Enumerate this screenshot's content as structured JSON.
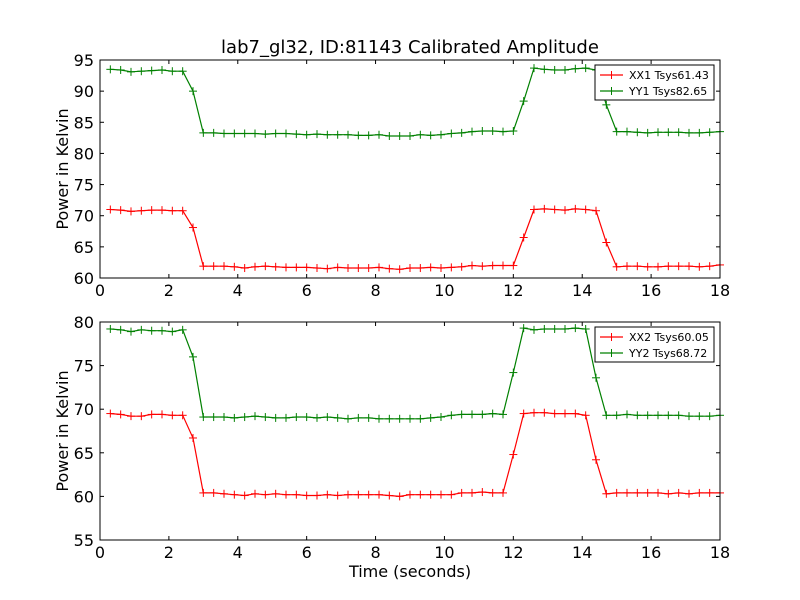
{
  "title": "lab7_gl32, ID:81143 Calibrated Amplitude",
  "chart_data": [
    {
      "type": "line",
      "title": "lab7_gl32, ID:81143 Calibrated Amplitude",
      "xlabel": "",
      "ylabel": "Power in Kelvin",
      "xlim": [
        0,
        18
      ],
      "ylim": [
        60,
        95
      ],
      "xticks": [
        "0",
        "2",
        "4",
        "6",
        "8",
        "10",
        "12",
        "14",
        "16",
        "18"
      ],
      "yticks": [
        "60",
        "65",
        "70",
        "75",
        "80",
        "85",
        "90",
        "95"
      ],
      "grid": false,
      "legend_position": "top-right",
      "x": [
        0.3,
        0.6,
        0.9,
        1.2,
        1.5,
        1.8,
        2.1,
        2.4,
        2.7,
        3.0,
        3.3,
        3.6,
        3.9,
        4.2,
        4.5,
        4.8,
        5.1,
        5.4,
        5.7,
        6.0,
        6.3,
        6.6,
        6.9,
        7.2,
        7.5,
        7.8,
        8.1,
        8.4,
        8.7,
        9.0,
        9.3,
        9.6,
        9.9,
        10.2,
        10.5,
        10.8,
        11.1,
        11.4,
        11.7,
        12.0,
        12.3,
        12.6,
        12.9,
        13.2,
        13.5,
        13.8,
        14.1,
        14.4,
        14.7,
        15.0,
        15.3,
        15.6,
        15.9,
        16.2,
        16.5,
        16.8,
        17.1,
        17.4,
        17.7,
        18.0
      ],
      "series": [
        {
          "name": "XX1 Tsys61.43",
          "color": "#ff0000",
          "values": [
            71.0,
            70.9,
            70.7,
            70.8,
            70.9,
            70.9,
            70.8,
            70.8,
            68.1,
            61.9,
            61.9,
            61.9,
            61.8,
            61.6,
            61.8,
            61.9,
            61.8,
            61.7,
            61.7,
            61.7,
            61.6,
            61.5,
            61.7,
            61.6,
            61.6,
            61.6,
            61.7,
            61.5,
            61.4,
            61.6,
            61.6,
            61.7,
            61.6,
            61.7,
            61.8,
            62.0,
            61.9,
            62.0,
            62.0,
            62.0,
            66.5,
            71.0,
            71.1,
            71.0,
            70.9,
            71.1,
            71.0,
            70.8,
            65.7,
            61.8,
            61.9,
            61.9,
            61.8,
            61.8,
            61.9,
            61.9,
            61.9,
            61.8,
            61.9,
            62.1
          ]
        },
        {
          "name": "YY1 Tsys82.65",
          "color": "#008000",
          "values": [
            93.5,
            93.4,
            93.1,
            93.2,
            93.3,
            93.4,
            93.2,
            93.2,
            90.0,
            83.3,
            83.3,
            83.2,
            83.2,
            83.2,
            83.2,
            83.1,
            83.2,
            83.2,
            83.1,
            83.0,
            83.1,
            83.0,
            83.0,
            83.0,
            82.9,
            82.9,
            83.0,
            82.8,
            82.8,
            82.8,
            83.0,
            82.9,
            83.0,
            83.2,
            83.3,
            83.5,
            83.6,
            83.6,
            83.5,
            83.6,
            88.4,
            93.7,
            93.5,
            93.4,
            93.4,
            93.6,
            93.7,
            93.4,
            87.8,
            83.5,
            83.5,
            83.4,
            83.3,
            83.4,
            83.4,
            83.4,
            83.3,
            83.3,
            83.4,
            83.5
          ]
        }
      ]
    },
    {
      "type": "line",
      "title": "",
      "xlabel": "Time (seconds)",
      "ylabel": "Power in Kelvin",
      "xlim": [
        0,
        18
      ],
      "ylim": [
        55,
        80
      ],
      "xticks": [
        "0",
        "2",
        "4",
        "6",
        "8",
        "10",
        "12",
        "14",
        "16",
        "18"
      ],
      "yticks": [
        "55",
        "60",
        "65",
        "70",
        "75",
        "80"
      ],
      "grid": false,
      "legend_position": "top-right",
      "x": [
        0.3,
        0.6,
        0.9,
        1.2,
        1.5,
        1.8,
        2.1,
        2.4,
        2.7,
        3.0,
        3.3,
        3.6,
        3.9,
        4.2,
        4.5,
        4.8,
        5.1,
        5.4,
        5.7,
        6.0,
        6.3,
        6.6,
        6.9,
        7.2,
        7.5,
        7.8,
        8.1,
        8.4,
        8.7,
        9.0,
        9.3,
        9.6,
        9.9,
        10.2,
        10.5,
        10.8,
        11.1,
        11.4,
        11.7,
        12.0,
        12.3,
        12.6,
        12.9,
        13.2,
        13.5,
        13.8,
        14.1,
        14.4,
        14.7,
        15.0,
        15.3,
        15.6,
        15.9,
        16.2,
        16.5,
        16.8,
        17.1,
        17.4,
        17.7,
        18.0
      ],
      "series": [
        {
          "name": "XX2 Tsys60.05",
          "color": "#ff0000",
          "values": [
            69.5,
            69.4,
            69.2,
            69.2,
            69.4,
            69.4,
            69.3,
            69.3,
            66.7,
            60.4,
            60.4,
            60.3,
            60.2,
            60.1,
            60.3,
            60.2,
            60.3,
            60.2,
            60.2,
            60.1,
            60.1,
            60.2,
            60.1,
            60.2,
            60.2,
            60.2,
            60.2,
            60.1,
            60.0,
            60.2,
            60.2,
            60.2,
            60.2,
            60.2,
            60.4,
            60.4,
            60.5,
            60.4,
            60.4,
            64.8,
            69.5,
            69.6,
            69.6,
            69.5,
            69.5,
            69.5,
            69.3,
            64.2,
            60.3,
            60.4,
            60.4,
            60.4,
            60.4,
            60.4,
            60.3,
            60.4,
            60.3,
            60.4,
            60.4,
            60.4
          ]
        },
        {
          "name": "YY2 Tsys68.72",
          "color": "#008000",
          "values": [
            79.2,
            79.1,
            78.9,
            79.1,
            79.0,
            79.0,
            78.9,
            79.1,
            76.0,
            69.1,
            69.1,
            69.1,
            69.0,
            69.1,
            69.2,
            69.1,
            69.0,
            69.0,
            69.1,
            69.1,
            69.0,
            69.1,
            69.0,
            68.9,
            69.0,
            69.0,
            68.9,
            68.9,
            68.9,
            68.9,
            68.9,
            69.0,
            69.1,
            69.3,
            69.4,
            69.4,
            69.4,
            69.5,
            69.4,
            74.2,
            79.3,
            79.1,
            79.2,
            79.2,
            79.2,
            79.3,
            79.2,
            73.6,
            69.3,
            69.3,
            69.4,
            69.3,
            69.3,
            69.3,
            69.3,
            69.3,
            69.2,
            69.2,
            69.2,
            69.3
          ]
        }
      ]
    }
  ]
}
